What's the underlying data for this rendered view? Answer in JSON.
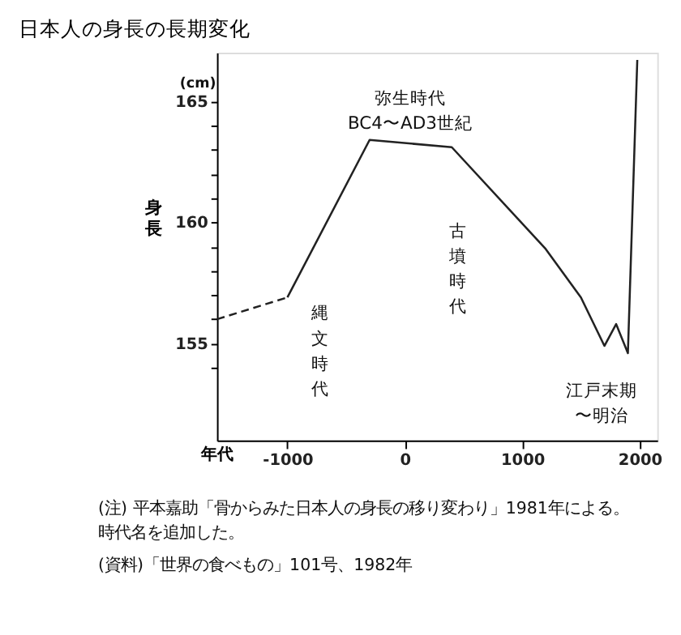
{
  "chart_data": {
    "type": "line",
    "title": "日本人の身長の長期変化",
    "ylabel": "身長",
    "xlabel": "年代",
    "xlim": [
      -1600,
      2150
    ],
    "xticks": [
      -1000,
      0,
      1000,
      2000
    ],
    "ylim": [
      151,
      167
    ],
    "yticks": [
      {
        "value": 154,
        "label": null
      },
      155,
      {
        "value": 156,
        "label": null
      },
      {
        "value": 157,
        "label": null
      },
      {
        "value": 158,
        "label": null
      },
      {
        "value": 159,
        "label": null
      },
      160,
      {
        "value": 161,
        "label": null
      },
      {
        "value": 162,
        "label": null
      },
      {
        "value": 163,
        "label": null
      },
      {
        "value": 164,
        "label": null
      },
      165
    ],
    "grid": false,
    "marker": "none",
    "series": [
      {
        "color": "#222222",
        "line_style": "dashed",
        "x": [
          -1600,
          -1000
        ],
        "values": [
          156.0,
          156.9
        ]
      },
      {
        "color": "#222222",
        "line_style": "solid",
        "x": [
          -1000,
          -300,
          400,
          1200,
          1500,
          1700,
          1800,
          1900,
          1980
        ],
        "values": [
          156.9,
          163.4,
          163.1,
          158.9,
          156.9,
          154.9,
          155.8,
          154.6,
          166.7
        ]
      }
    ],
    "annotations": [
      "(cm)",
      "弥生時代BC4〜AD3世紀",
      "縄文時代",
      "古墳時代",
      "江戸末期〜明治",
      "(注) 平本嘉助「骨からみた日本人の身長の移り変わり」1981年による。時代名を追加した。",
      "(資料)「世界の食べもの」101号、1982年"
    ]
  }
}
